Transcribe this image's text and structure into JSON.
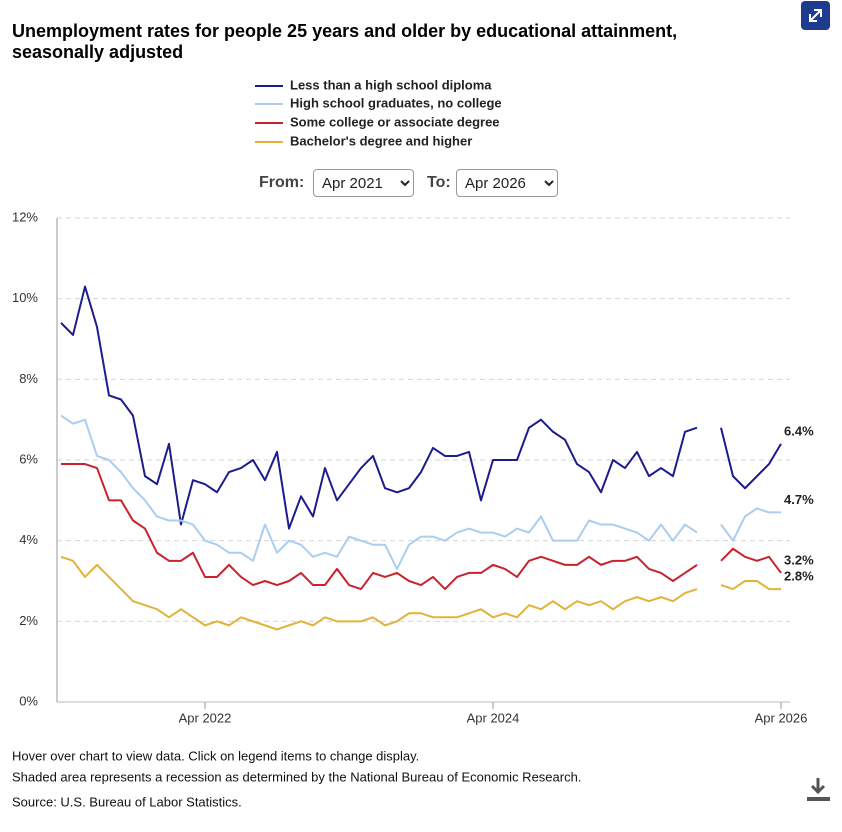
{
  "chart_data": {
    "type": "line",
    "title": "Unemployment rates for people 25 years and older by educational attainment, seasonally adjusted",
    "x": [
      "2021-04",
      "2021-05",
      "2021-06",
      "2021-07",
      "2021-08",
      "2021-09",
      "2021-10",
      "2021-11",
      "2021-12",
      "2022-01",
      "2022-02",
      "2022-03",
      "2022-04",
      "2022-05",
      "2022-06",
      "2022-07",
      "2022-08",
      "2022-09",
      "2022-10",
      "2022-11",
      "2022-12",
      "2023-01",
      "2023-02",
      "2023-03",
      "2023-04",
      "2023-05",
      "2023-06",
      "2023-07",
      "2023-08",
      "2023-09",
      "2023-10",
      "2023-11",
      "2023-12",
      "2024-01",
      "2024-02",
      "2024-03",
      "2024-04",
      "2024-05",
      "2024-06",
      "2024-07",
      "2024-08",
      "2024-09",
      "2024-10",
      "2024-11",
      "2024-12",
      "2025-01",
      "2025-02",
      "2025-03",
      "2025-04",
      "2025-05",
      "2025-06",
      "2025-07",
      "2025-08",
      "2025-09",
      "2025-10",
      "2025-11",
      "2025-12",
      "2026-01",
      "2026-02",
      "2026-03",
      "2026-04"
    ],
    "xticks": [
      {
        "value": "2022-04",
        "label": "Apr 2022"
      },
      {
        "value": "2024-04",
        "label": "Apr 2024"
      },
      {
        "value": "2026-04",
        "label": "Apr 2026"
      }
    ],
    "ylim": [
      0,
      12
    ],
    "yticks": [
      {
        "value": 0,
        "label": "0%"
      },
      {
        "value": 2,
        "label": "2%"
      },
      {
        "value": 4,
        "label": "4%"
      },
      {
        "value": 6,
        "label": "6%"
      },
      {
        "value": 8,
        "label": "8%"
      },
      {
        "value": 10,
        "label": "10%"
      },
      {
        "value": 12,
        "label": "12%"
      }
    ],
    "grid": true,
    "series": [
      {
        "name": "Less than a high school diploma",
        "color": "#1c1c8f",
        "values": [
          9.4,
          9.1,
          10.3,
          9.3,
          7.6,
          7.5,
          7.1,
          5.6,
          5.4,
          6.4,
          4.4,
          5.5,
          5.4,
          5.2,
          5.7,
          5.8,
          6.0,
          5.5,
          6.2,
          4.3,
          5.1,
          4.6,
          5.8,
          5.0,
          5.4,
          5.8,
          6.1,
          5.3,
          5.2,
          5.3,
          5.7,
          6.3,
          6.1,
          6.1,
          6.2,
          5.0,
          6.0,
          6.0,
          6.0,
          6.8,
          7.0,
          6.7,
          6.5,
          5.9,
          5.7,
          5.2,
          6.0,
          5.8,
          6.2,
          5.6,
          5.8,
          5.6,
          6.7,
          6.8,
          null,
          6.8,
          5.6,
          5.3,
          5.6,
          5.9,
          6.4
        ],
        "value_labels": [
          null,
          null,
          null,
          null,
          null,
          null,
          null,
          null,
          null,
          null,
          null,
          null,
          null,
          null,
          null,
          null,
          null,
          null,
          null,
          null,
          null,
          null,
          null,
          null,
          null,
          null,
          null,
          null,
          null,
          null,
          null,
          null,
          null,
          null,
          null,
          null,
          null,
          null,
          null,
          null,
          null,
          null,
          null,
          null,
          null,
          null,
          null,
          null,
          null,
          null,
          null,
          null,
          null,
          null,
          null,
          null,
          null,
          null,
          null,
          null,
          "6.4%"
        ]
      },
      {
        "name": "High school graduates, no college",
        "color": "#aacdf0",
        "values": [
          7.1,
          6.9,
          7.0,
          6.1,
          6.0,
          5.7,
          5.3,
          5.0,
          4.6,
          4.5,
          4.5,
          4.4,
          4.0,
          3.9,
          3.7,
          3.7,
          3.5,
          4.4,
          3.7,
          4.0,
          3.9,
          3.6,
          3.7,
          3.6,
          4.1,
          4.0,
          3.9,
          3.9,
          3.3,
          3.9,
          4.1,
          4.1,
          4.0,
          4.2,
          4.3,
          4.2,
          4.2,
          4.1,
          4.3,
          4.2,
          4.6,
          4.0,
          4.0,
          4.0,
          4.5,
          4.4,
          4.4,
          4.3,
          4.2,
          4.0,
          4.4,
          4.0,
          4.4,
          4.2,
          null,
          4.4,
          4.0,
          4.6,
          4.8,
          4.7,
          4.7
        ],
        "value_labels": [
          null,
          null,
          null,
          null,
          null,
          null,
          null,
          null,
          null,
          null,
          null,
          null,
          null,
          null,
          null,
          null,
          null,
          null,
          null,
          null,
          null,
          null,
          null,
          null,
          null,
          null,
          null,
          null,
          null,
          null,
          null,
          null,
          null,
          null,
          null,
          null,
          null,
          null,
          null,
          null,
          null,
          null,
          null,
          null,
          null,
          null,
          null,
          null,
          null,
          null,
          null,
          null,
          null,
          null,
          null,
          null,
          null,
          null,
          null,
          null,
          "4.7%"
        ]
      },
      {
        "name": "Some college or associate degree",
        "color": "#c8232c",
        "values": [
          5.9,
          5.9,
          5.9,
          5.8,
          5.0,
          5.0,
          4.5,
          4.3,
          3.7,
          3.5,
          3.5,
          3.7,
          3.1,
          3.1,
          3.4,
          3.1,
          2.9,
          3.0,
          2.9,
          3.0,
          3.2,
          2.9,
          2.9,
          3.3,
          2.9,
          2.8,
          3.2,
          3.1,
          3.2,
          3.0,
          2.9,
          3.1,
          2.8,
          3.1,
          3.2,
          3.2,
          3.4,
          3.3,
          3.1,
          3.5,
          3.6,
          3.5,
          3.4,
          3.4,
          3.6,
          3.4,
          3.5,
          3.5,
          3.6,
          3.3,
          3.2,
          3.0,
          3.2,
          3.4,
          null,
          3.5,
          3.8,
          3.6,
          3.5,
          3.6,
          3.2
        ],
        "value_labels": [
          null,
          null,
          null,
          null,
          null,
          null,
          null,
          null,
          null,
          null,
          null,
          null,
          null,
          null,
          null,
          null,
          null,
          null,
          null,
          null,
          null,
          null,
          null,
          null,
          null,
          null,
          null,
          null,
          null,
          null,
          null,
          null,
          null,
          null,
          null,
          null,
          null,
          null,
          null,
          null,
          null,
          null,
          null,
          null,
          null,
          null,
          null,
          null,
          null,
          null,
          null,
          null,
          null,
          null,
          null,
          null,
          null,
          null,
          null,
          null,
          "3.2%"
        ]
      },
      {
        "name": "Bachelor's degree and higher",
        "color": "#e2b33a",
        "values": [
          3.6,
          3.5,
          3.1,
          3.4,
          3.1,
          2.8,
          2.5,
          2.4,
          2.3,
          2.1,
          2.3,
          2.1,
          1.9,
          2.0,
          1.9,
          2.1,
          2.0,
          1.9,
          1.8,
          1.9,
          2.0,
          1.9,
          2.1,
          2.0,
          2.0,
          2.0,
          2.1,
          1.9,
          2.0,
          2.2,
          2.2,
          2.1,
          2.1,
          2.1,
          2.2,
          2.3,
          2.1,
          2.2,
          2.1,
          2.4,
          2.3,
          2.5,
          2.3,
          2.5,
          2.4,
          2.5,
          2.3,
          2.5,
          2.6,
          2.5,
          2.6,
          2.5,
          2.7,
          2.8,
          null,
          2.9,
          2.8,
          3.0,
          3.0,
          2.8,
          2.8
        ],
        "value_labels": [
          null,
          null,
          null,
          null,
          null,
          null,
          null,
          null,
          null,
          null,
          null,
          null,
          null,
          null,
          null,
          null,
          null,
          null,
          null,
          null,
          null,
          null,
          null,
          null,
          null,
          null,
          null,
          null,
          null,
          null,
          null,
          null,
          null,
          null,
          null,
          null,
          null,
          null,
          null,
          null,
          null,
          null,
          null,
          null,
          null,
          null,
          null,
          null,
          null,
          null,
          null,
          null,
          null,
          null,
          null,
          null,
          null,
          null,
          null,
          null,
          "2.8%"
        ]
      }
    ]
  },
  "controls": {
    "from_label": "From:",
    "from_value": "Apr 2021",
    "to_label": "To:",
    "to_value": "Apr 2026"
  },
  "notes": [
    "Hover over chart to view data. Click on legend items to change display.",
    "Shaded area represents a recession as determined by the National Bureau of Economic Research.",
    "Source: U.S. Bureau of Labor Statistics."
  ]
}
